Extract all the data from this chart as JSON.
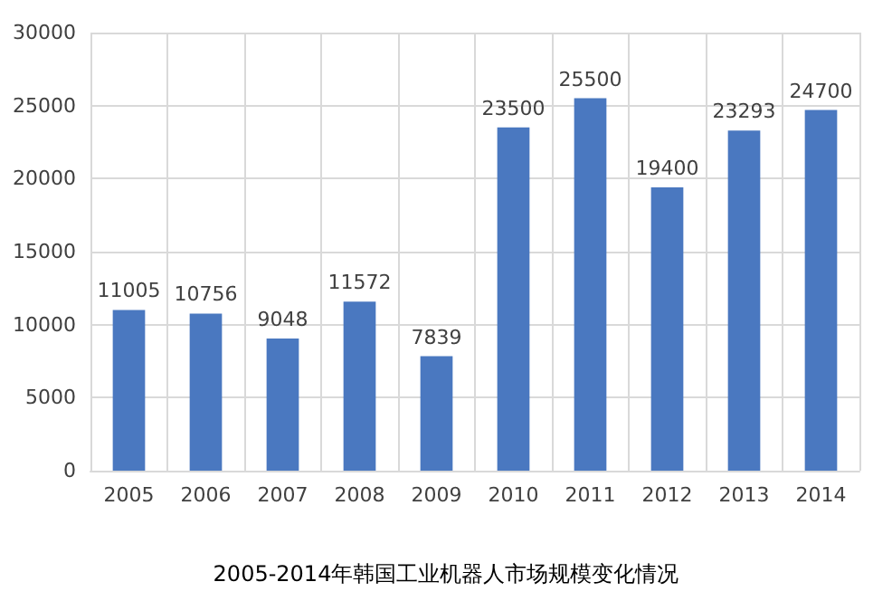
{
  "chart_data": {
    "type": "bar",
    "title": "2005-2014年韩国工业机器人市场规模变化情况",
    "categories": [
      "2005",
      "2006",
      "2007",
      "2008",
      "2009",
      "2010",
      "2011",
      "2012",
      "2013",
      "2014"
    ],
    "values": [
      11005,
      10756,
      9048,
      11572,
      7839,
      23500,
      25500,
      19400,
      23293,
      24700
    ],
    "color": "#4a78c0",
    "ylim": [
      0,
      30000
    ],
    "yticks": [
      0,
      5000,
      10000,
      15000,
      20000,
      25000,
      30000
    ],
    "grid": true,
    "data_labels": true
  }
}
